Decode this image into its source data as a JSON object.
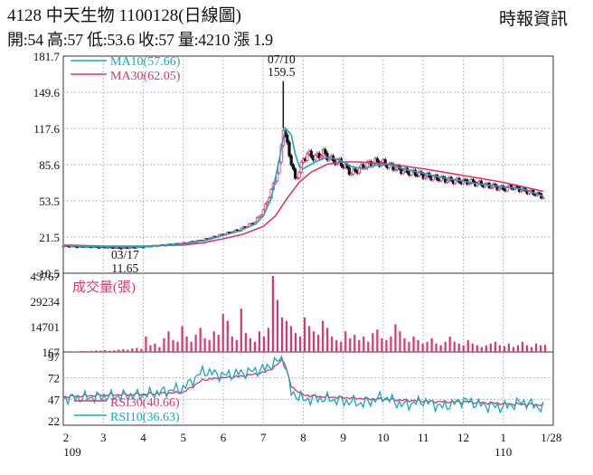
{
  "header": {
    "title": "4128  中天生物 1100128(日線圖)",
    "brand": "時報資訊",
    "quote": "開:54 高:57 低:53.6 收:57 量:4210 漲 1.9"
  },
  "colors": {
    "ma10": "#1aa7c0",
    "ma30": "#d8386e",
    "up": "#d8386e",
    "down": "#111111",
    "volume": "#d8386e",
    "rsi30": "#d8386e",
    "rsi10": "#1aa7c0"
  },
  "chart_data": [
    {
      "type": "candlestick",
      "panel": "price",
      "ylim": [
        -10.5,
        181.7
      ],
      "yticks": [
        "181.7",
        "149.6",
        "117.6",
        "85.6",
        "53.5",
        "21.5",
        "-10.5"
      ],
      "legend": [
        "MA10(57.66)",
        "MA30(62.05)"
      ],
      "annotations": [
        {
          "label": "07/10",
          "value": "159.5",
          "x": 5.5
        },
        {
          "label": "03/17",
          "value": "11.65",
          "x": 1.5
        }
      ],
      "x_months": [
        "2",
        "3",
        "4",
        "5",
        "6",
        "7",
        "8",
        "9",
        "10",
        "11",
        "12",
        "1",
        "1/28"
      ],
      "x_years": [
        "109",
        "110"
      ],
      "close_series": [
        [
          0,
          13.5
        ],
        [
          0.5,
          13
        ],
        [
          1,
          12.5
        ],
        [
          1.5,
          11.8
        ],
        [
          2,
          13
        ],
        [
          2.5,
          14.5
        ],
        [
          3,
          16
        ],
        [
          3.5,
          19
        ],
        [
          4,
          24
        ],
        [
          4.4,
          28
        ],
        [
          4.8,
          35
        ],
        [
          5.0,
          45
        ],
        [
          5.2,
          62
        ],
        [
          5.4,
          85
        ],
        [
          5.5,
          120
        ],
        [
          5.6,
          102
        ],
        [
          5.7,
          88
        ],
        [
          5.8,
          72
        ],
        [
          5.9,
          80
        ],
        [
          6.0,
          90
        ],
        [
          6.1,
          95
        ],
        [
          6.3,
          92
        ],
        [
          6.5,
          96
        ],
        [
          6.7,
          90
        ],
        [
          6.9,
          88
        ],
        [
          7.0,
          85
        ],
        [
          7.2,
          78
        ],
        [
          7.4,
          82
        ],
        [
          7.6,
          86
        ],
        [
          7.8,
          88
        ],
        [
          8.0,
          87
        ],
        [
          8.2,
          84
        ],
        [
          8.5,
          80
        ],
        [
          8.8,
          78
        ],
        [
          9.0,
          76
        ],
        [
          9.3,
          74
        ],
        [
          9.6,
          72
        ],
        [
          9.9,
          71
        ],
        [
          10.2,
          70
        ],
        [
          10.5,
          68
        ],
        [
          10.8,
          66
        ],
        [
          11.0,
          64
        ],
        [
          11.2,
          66
        ],
        [
          11.4,
          64
        ],
        [
          11.6,
          62
        ],
        [
          11.8,
          60
        ],
        [
          12.0,
          57
        ]
      ],
      "ma10_series": [
        [
          0,
          14
        ],
        [
          1,
          13
        ],
        [
          2,
          13
        ],
        [
          3,
          15.5
        ],
        [
          3.6,
          19
        ],
        [
          4.0,
          23
        ],
        [
          4.4,
          27
        ],
        [
          4.8,
          33
        ],
        [
          5.0,
          40
        ],
        [
          5.2,
          56
        ],
        [
          5.4,
          90
        ],
        [
          5.55,
          118
        ],
        [
          5.7,
          112
        ],
        [
          5.8,
          95
        ],
        [
          5.9,
          84
        ],
        [
          6.0,
          82
        ],
        [
          6.3,
          88
        ],
        [
          6.6,
          92
        ],
        [
          6.9,
          90
        ],
        [
          7.2,
          84
        ],
        [
          7.5,
          82
        ],
        [
          7.8,
          85
        ],
        [
          8.1,
          86
        ],
        [
          8.5,
          82
        ],
        [
          9.0,
          78
        ],
        [
          9.5,
          74
        ],
        [
          10.0,
          71
        ],
        [
          10.5,
          68
        ],
        [
          11.0,
          66
        ],
        [
          11.5,
          64
        ],
        [
          12.0,
          57.66
        ]
      ],
      "ma30_series": [
        [
          0,
          14.5
        ],
        [
          1,
          13.5
        ],
        [
          2,
          13.5
        ],
        [
          3,
          14.5
        ],
        [
          3.5,
          16.5
        ],
        [
          4.0,
          20
        ],
        [
          4.5,
          24
        ],
        [
          5.0,
          31
        ],
        [
          5.3,
          40
        ],
        [
          5.6,
          56
        ],
        [
          5.9,
          70
        ],
        [
          6.2,
          79
        ],
        [
          6.6,
          86
        ],
        [
          7.0,
          88
        ],
        [
          7.4,
          88
        ],
        [
          7.8,
          87
        ],
        [
          8.2,
          86
        ],
        [
          8.6,
          84
        ],
        [
          9.0,
          82
        ],
        [
          9.5,
          79
        ],
        [
          10.0,
          76
        ],
        [
          10.5,
          73
        ],
        [
          11.0,
          70
        ],
        [
          11.5,
          66
        ],
        [
          12.0,
          62.05
        ]
      ]
    },
    {
      "type": "bar",
      "panel": "volume",
      "ylim": [
        167,
        43767
      ],
      "yticks": [
        "43767",
        "29234",
        "14701",
        "167"
      ],
      "legend": [
        "成交量(張)"
      ],
      "values": [
        400,
        500,
        700,
        600,
        800,
        1000,
        900,
        1200,
        800,
        1100,
        1500,
        1800,
        1400,
        2200,
        2500,
        2000,
        9000,
        4000,
        5000,
        3000,
        8000,
        12000,
        7000,
        6000,
        15000,
        9000,
        6000,
        10000,
        14000,
        8000,
        7000,
        12000,
        10000,
        22000,
        18000,
        9000,
        7000,
        25000,
        11000,
        8000,
        6000,
        12000,
        9000,
        14000,
        43767,
        30000,
        20000,
        18000,
        15000,
        11000,
        9000,
        20000,
        15000,
        12000,
        10000,
        18000,
        14000,
        9000,
        7000,
        6000,
        12000,
        8000,
        10000,
        7000,
        9000,
        6000,
        11000,
        13000,
        8000,
        7000,
        9000,
        16000,
        12000,
        8000,
        6000,
        9000,
        7000,
        5000,
        6000,
        8000,
        5000,
        4000,
        6000,
        9000,
        6000,
        5000,
        4000,
        7000,
        5000,
        4000,
        3000,
        4000,
        5000,
        6000,
        4000,
        3500,
        5000,
        3000,
        4000,
        6000,
        4000,
        3000,
        5000,
        4000,
        4210
      ]
    },
    {
      "type": "line",
      "panel": "rsi",
      "ylim": [
        22,
        97
      ],
      "yticks": [
        "97",
        "72",
        "47",
        "22"
      ],
      "legend": [
        "RSI30(40.66)",
        "RSI10(36.63)"
      ],
      "x": [
        0,
        1,
        2,
        3,
        3.5,
        4,
        4.5,
        5,
        5.3,
        5.5,
        5.7,
        6,
        6.5,
        7,
        7.5,
        8,
        8.5,
        9,
        9.5,
        10,
        10.5,
        11,
        11.5,
        12
      ],
      "series": [
        {
          "name": "RSI30(40.66)",
          "values": [
            50,
            52,
            53,
            55,
            70,
            72,
            74,
            78,
            85,
            95,
            62,
            52,
            50,
            49,
            48,
            47,
            46,
            45,
            44,
            44,
            43,
            42,
            41,
            40.66
          ]
        },
        {
          "name": "RSI10(36.63)",
          "values": [
            48,
            50,
            52,
            60,
            80,
            75,
            78,
            82,
            90,
            96,
            55,
            47,
            48,
            45,
            42,
            50,
            40,
            45,
            38,
            46,
            40,
            38,
            44,
            36.63
          ]
        }
      ]
    }
  ]
}
